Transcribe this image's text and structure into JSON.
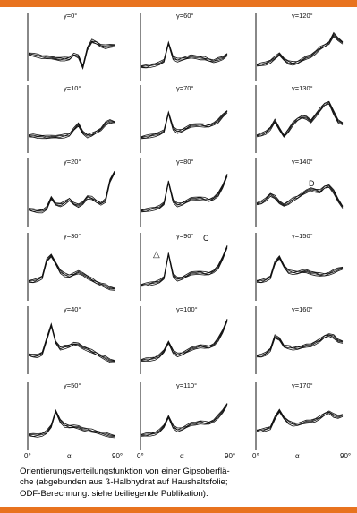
{
  "chart_data": {
    "type": "line",
    "description_grid": "6 rows x 3 columns of small line plots",
    "panels": [
      {
        "gamma_label": "γ=0°",
        "y": [
          0.35,
          0.33,
          0.32,
          0.3,
          0.29,
          0.28,
          0.27,
          0.26,
          0.26,
          0.27,
          0.34,
          0.3,
          0.12,
          0.45,
          0.58,
          0.55,
          0.5,
          0.48,
          0.5,
          0.5
        ]
      },
      {
        "gamma_label": "γ=60°",
        "y": [
          0.12,
          0.12,
          0.14,
          0.16,
          0.18,
          0.22,
          0.55,
          0.28,
          0.24,
          0.26,
          0.28,
          0.3,
          0.3,
          0.28,
          0.27,
          0.24,
          0.22,
          0.25,
          0.28,
          0.34
        ]
      },
      {
        "gamma_label": "γ=120°",
        "y": [
          0.15,
          0.16,
          0.18,
          0.22,
          0.28,
          0.34,
          0.26,
          0.2,
          0.18,
          0.2,
          0.24,
          0.28,
          0.32,
          0.38,
          0.45,
          0.5,
          0.55,
          0.7,
          0.62,
          0.55
        ]
      },
      {
        "gamma_label": "γ=10°",
        "y": [
          0.18,
          0.18,
          0.17,
          0.17,
          0.16,
          0.16,
          0.17,
          0.17,
          0.18,
          0.2,
          0.3,
          0.38,
          0.25,
          0.18,
          0.2,
          0.25,
          0.3,
          0.4,
          0.45,
          0.42
        ]
      },
      {
        "gamma_label": "γ=70°",
        "y": [
          0.15,
          0.16,
          0.18,
          0.2,
          0.22,
          0.26,
          0.6,
          0.32,
          0.26,
          0.28,
          0.32,
          0.36,
          0.38,
          0.38,
          0.36,
          0.36,
          0.4,
          0.45,
          0.55,
          0.62
        ]
      },
      {
        "gamma_label": "γ=130°",
        "y": [
          0.18,
          0.2,
          0.24,
          0.32,
          0.45,
          0.3,
          0.18,
          0.28,
          0.4,
          0.48,
          0.52,
          0.5,
          0.45,
          0.55,
          0.65,
          0.75,
          0.78,
          0.6,
          0.45,
          0.4
        ]
      },
      {
        "gamma_label": "γ=20°",
        "y": [
          0.18,
          0.16,
          0.15,
          0.15,
          0.2,
          0.38,
          0.28,
          0.26,
          0.3,
          0.36,
          0.28,
          0.24,
          0.3,
          0.4,
          0.38,
          0.32,
          0.28,
          0.34,
          0.7,
          0.85
        ]
      },
      {
        "gamma_label": "γ=80°",
        "y": [
          0.15,
          0.16,
          0.18,
          0.2,
          0.22,
          0.28,
          0.68,
          0.34,
          0.26,
          0.28,
          0.32,
          0.36,
          0.38,
          0.38,
          0.36,
          0.34,
          0.38,
          0.45,
          0.6,
          0.8
        ]
      },
      {
        "gamma_label": "γ=140°",
        "y": [
          0.28,
          0.3,
          0.36,
          0.45,
          0.4,
          0.3,
          0.26,
          0.3,
          0.36,
          0.4,
          0.45,
          0.5,
          0.55,
          0.52,
          0.5,
          0.58,
          0.6,
          0.5,
          0.35,
          0.22
        ]
      },
      {
        "gamma_label": "γ=30°",
        "y": [
          0.22,
          0.22,
          0.25,
          0.3,
          0.6,
          0.68,
          0.55,
          0.4,
          0.34,
          0.32,
          0.35,
          0.38,
          0.36,
          0.3,
          0.25,
          0.2,
          0.17,
          0.14,
          0.1,
          0.08
        ]
      },
      {
        "gamma_label": "γ=90°",
        "y": [
          0.15,
          0.16,
          0.18,
          0.2,
          0.22,
          0.28,
          0.72,
          0.34,
          0.26,
          0.28,
          0.32,
          0.36,
          0.38,
          0.38,
          0.36,
          0.36,
          0.4,
          0.48,
          0.65,
          0.85
        ]
      },
      {
        "gamma_label": "γ=150°",
        "y": [
          0.22,
          0.22,
          0.25,
          0.3,
          0.55,
          0.65,
          0.5,
          0.4,
          0.38,
          0.38,
          0.4,
          0.4,
          0.38,
          0.36,
          0.34,
          0.34,
          0.36,
          0.4,
          0.44,
          0.46
        ]
      },
      {
        "gamma_label": "γ=40°",
        "y": [
          0.22,
          0.2,
          0.2,
          0.25,
          0.5,
          0.75,
          0.45,
          0.34,
          0.36,
          0.38,
          0.42,
          0.4,
          0.36,
          0.32,
          0.28,
          0.24,
          0.2,
          0.16,
          0.12,
          0.1
        ]
      },
      {
        "gamma_label": "γ=100°",
        "y": [
          0.12,
          0.13,
          0.14,
          0.16,
          0.2,
          0.28,
          0.45,
          0.28,
          0.22,
          0.24,
          0.28,
          0.32,
          0.36,
          0.38,
          0.36,
          0.36,
          0.4,
          0.5,
          0.65,
          0.85
        ]
      },
      {
        "gamma_label": "γ=160°",
        "y": [
          0.2,
          0.2,
          0.24,
          0.32,
          0.55,
          0.5,
          0.38,
          0.36,
          0.34,
          0.34,
          0.36,
          0.38,
          0.4,
          0.44,
          0.48,
          0.55,
          0.58,
          0.55,
          0.48,
          0.45
        ]
      },
      {
        "gamma_label": "γ=50°",
        "y": [
          0.15,
          0.14,
          0.14,
          0.16,
          0.2,
          0.3,
          0.58,
          0.4,
          0.32,
          0.3,
          0.3,
          0.28,
          0.26,
          0.24,
          0.22,
          0.2,
          0.18,
          0.16,
          0.14,
          0.12
        ]
      },
      {
        "gamma_label": "γ=110°",
        "y": [
          0.14,
          0.15,
          0.16,
          0.18,
          0.22,
          0.3,
          0.48,
          0.3,
          0.24,
          0.26,
          0.3,
          0.34,
          0.36,
          0.38,
          0.36,
          0.36,
          0.4,
          0.48,
          0.58,
          0.7
        ]
      },
      {
        "gamma_label": "γ=170°",
        "y": [
          0.22,
          0.22,
          0.25,
          0.28,
          0.45,
          0.58,
          0.46,
          0.38,
          0.34,
          0.34,
          0.36,
          0.38,
          0.4,
          0.42,
          0.46,
          0.52,
          0.56,
          0.5,
          0.48,
          0.5
        ]
      }
    ],
    "x_tick_labels": [
      "0°",
      "α",
      "90°"
    ],
    "markers": [
      "△",
      "C",
      "D"
    ]
  },
  "caption": {
    "line1": "Orientierungsverteilungsfunktion von einer Gipsoberflä-",
    "line2": "che (abgebunden aus ß-Halbhydrat auf Haushaltsfolie;",
    "line3": "ODF-Berechnung: siehe beiliegende Publikation)."
  },
  "colors": {
    "bar": "#e8731f",
    "ink": "#111111"
  }
}
